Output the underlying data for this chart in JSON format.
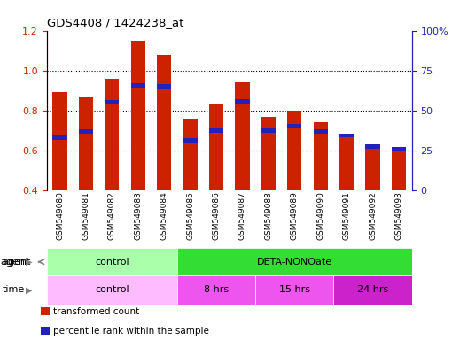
{
  "title": "GDS4408 / 1424238_at",
  "samples": [
    "GSM549080",
    "GSM549081",
    "GSM549082",
    "GSM549083",
    "GSM549084",
    "GSM549085",
    "GSM549086",
    "GSM549087",
    "GSM549088",
    "GSM549089",
    "GSM549090",
    "GSM549091",
    "GSM549092",
    "GSM549093"
  ],
  "red_values": [
    0.89,
    0.87,
    0.96,
    1.15,
    1.08,
    0.76,
    0.83,
    0.94,
    0.77,
    0.8,
    0.74,
    0.68,
    0.62,
    0.6
  ],
  "blue_values": [
    0.665,
    0.695,
    0.84,
    0.925,
    0.92,
    0.65,
    0.7,
    0.845,
    0.7,
    0.72,
    0.695,
    0.675,
    0.62,
    0.605
  ],
  "ylim_left": [
    0.4,
    1.2
  ],
  "ylim_right": [
    0,
    100
  ],
  "yticks_left": [
    0.4,
    0.6,
    0.8,
    1.0,
    1.2
  ],
  "yticks_right": [
    0,
    25,
    50,
    75,
    100
  ],
  "ytick_labels_right": [
    "0",
    "25",
    "50",
    "75",
    "100%"
  ],
  "bar_color": "#cc2200",
  "blue_color": "#2222bb",
  "bar_bottom": 0.4,
  "agent_spans": [
    {
      "label": "control",
      "start": 0,
      "end": 5,
      "color": "#aaffaa"
    },
    {
      "label": "DETA-NONOate",
      "start": 5,
      "end": 14,
      "color": "#33dd33"
    }
  ],
  "time_spans": [
    {
      "label": "control",
      "start": 0,
      "end": 5,
      "color": "#ffbbff"
    },
    {
      "label": "8 hrs",
      "start": 5,
      "end": 8,
      "color": "#ee55ee"
    },
    {
      "label": "15 hrs",
      "start": 8,
      "end": 11,
      "color": "#ee55ee"
    },
    {
      "label": "24 hrs",
      "start": 11,
      "end": 14,
      "color": "#cc22cc"
    }
  ],
  "legend_items": [
    {
      "label": "transformed count",
      "color": "#cc2200"
    },
    {
      "label": "percentile rank within the sample",
      "color": "#2222bb"
    }
  ],
  "tick_label_color_left": "#cc2200",
  "tick_label_color_right": "#2222bb",
  "xtick_bg_color": "#dddddd",
  "fig_bg": "#ffffff"
}
